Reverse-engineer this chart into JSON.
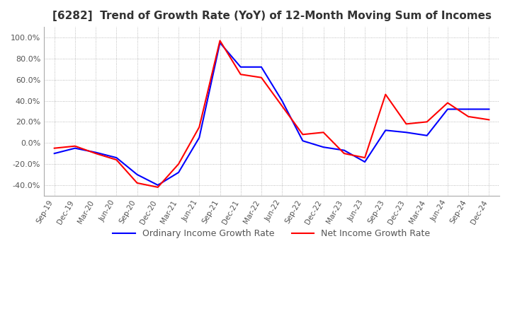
{
  "title": "[6282]  Trend of Growth Rate (YoY) of 12-Month Moving Sum of Incomes",
  "title_fontsize": 11,
  "ylim": [
    -0.5,
    1.1
  ],
  "yticks": [
    -0.4,
    -0.2,
    0.0,
    0.2,
    0.4,
    0.6,
    0.8,
    1.0
  ],
  "legend_labels": [
    "Ordinary Income Growth Rate",
    "Net Income Growth Rate"
  ],
  "line_colors": [
    "#0000FF",
    "#FF0000"
  ],
  "background_color": "#FFFFFF",
  "grid_color": "#AAAAAA",
  "x_labels": [
    "Sep-19",
    "Dec-19",
    "Mar-20",
    "Jun-20",
    "Sep-20",
    "Dec-20",
    "Mar-21",
    "Jun-21",
    "Sep-21",
    "Dec-21",
    "Mar-22",
    "Jun-22",
    "Sep-22",
    "Dec-22",
    "Mar-23",
    "Jun-23",
    "Sep-23",
    "Dec-23",
    "Mar-24",
    "Jun-24",
    "Sep-24",
    "Dec-24"
  ],
  "ordinary_income": [
    -0.1,
    -0.05,
    -0.09,
    -0.14,
    -0.3,
    -0.4,
    -0.28,
    0.05,
    0.95,
    0.72,
    0.72,
    0.4,
    0.02,
    -0.04,
    -0.07,
    -0.18,
    0.12,
    0.1,
    0.07,
    0.32,
    0.32,
    0.32
  ],
  "net_income": [
    -0.05,
    -0.03,
    -0.1,
    -0.16,
    -0.38,
    -0.42,
    -0.2,
    0.15,
    0.97,
    0.65,
    0.62,
    0.35,
    0.08,
    0.1,
    -0.1,
    -0.14,
    0.46,
    0.18,
    0.2,
    0.38,
    0.25,
    0.22
  ]
}
